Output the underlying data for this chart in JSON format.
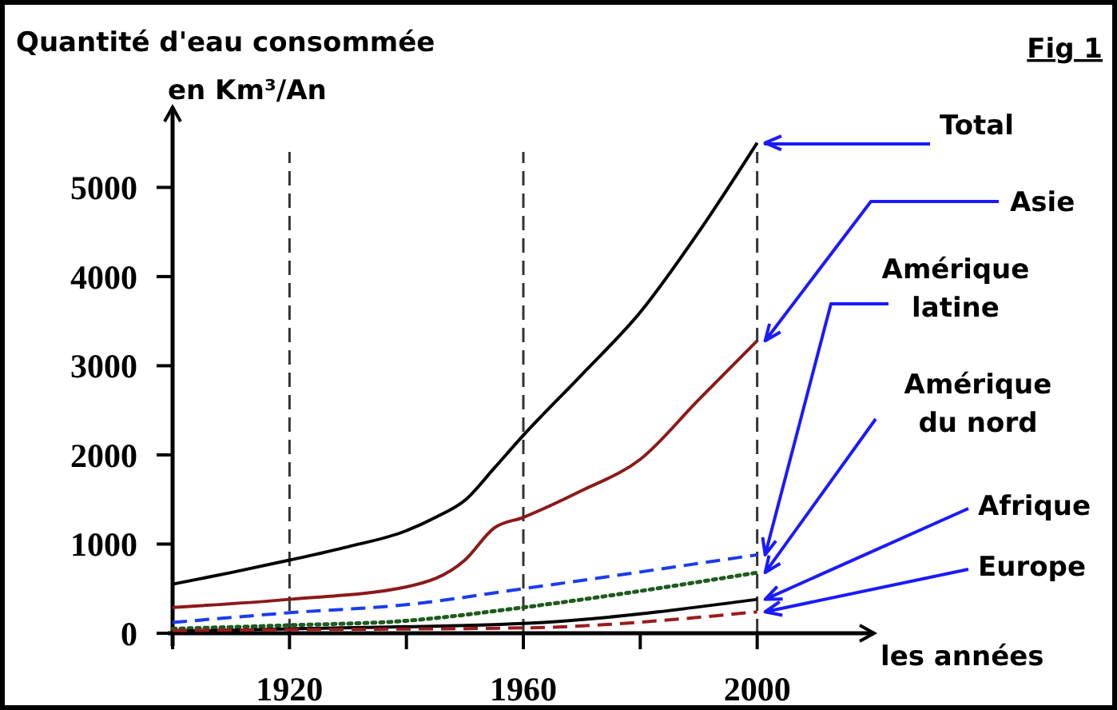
{
  "chart_data": {
    "type": "line",
    "title": "Fig 1",
    "ylabel": "Quantité d'eau consommée en Km³/An",
    "xlabel": "les années",
    "xlim": [
      1900,
      2020
    ],
    "ylim": [
      0,
      5900
    ],
    "xticks": [
      {
        "value": 1900,
        "label": null
      },
      1920,
      {
        "value": 1940,
        "label": null
      },
      1960,
      {
        "value": 1980,
        "label": null
      },
      2000
    ],
    "yticks": [
      0,
      1000,
      2000,
      3000,
      4000,
      5000
    ],
    "grid": false,
    "ref_lines": [
      {
        "axis": "x",
        "value": 1920,
        "color": "#333333",
        "line_style": "dashed"
      },
      {
        "axis": "x",
        "value": 1960,
        "color": "#333333",
        "line_style": "dashed"
      },
      {
        "axis": "x",
        "value": 2000,
        "color": "#333333",
        "line_style": "dashed"
      }
    ],
    "series": [
      {
        "name": "Total",
        "color": "#000000",
        "line_style": "solid",
        "x": [
          1900,
          1910,
          1920,
          1930,
          1940,
          1945,
          1950,
          1955,
          1960,
          1970,
          1980,
          1990,
          2000
        ],
        "values": [
          550,
          680,
          820,
          970,
          1150,
          1300,
          1490,
          1850,
          2220,
          2900,
          3600,
          4500,
          5500
        ]
      },
      {
        "name": "Asie",
        "color": "#8b1a1a",
        "line_style": "solid",
        "x": [
          1900,
          1920,
          1940,
          1950,
          1955,
          1960,
          1970,
          1980,
          1990,
          2000
        ],
        "values": [
          290,
          380,
          520,
          820,
          1180,
          1300,
          1600,
          1950,
          2620,
          3280
        ]
      },
      {
        "name": "Amérique latine",
        "color": "#1a3cf0",
        "line_style": "dashed",
        "x": [
          1900,
          1920,
          1940,
          1960,
          2000
        ],
        "values": [
          120,
          230,
          320,
          500,
          880
        ]
      },
      {
        "name": "Amérique du nord",
        "color": "#1f5a1f",
        "line_style": "dotted",
        "x": [
          1900,
          1920,
          1940,
          1960,
          2000
        ],
        "values": [
          50,
          90,
          140,
          290,
          680
        ]
      },
      {
        "name": "Afrique",
        "color": "#000000",
        "line_style": "solid",
        "x": [
          1900,
          1920,
          1960,
          2000
        ],
        "values": [
          20,
          50,
          110,
          380
        ]
      },
      {
        "name": "Europe",
        "color": "#9b1c1c",
        "line_style": "dashed",
        "x": [
          1900,
          1920,
          1960,
          2000
        ],
        "values": [
          30,
          40,
          60,
          240
        ]
      }
    ]
  }
}
